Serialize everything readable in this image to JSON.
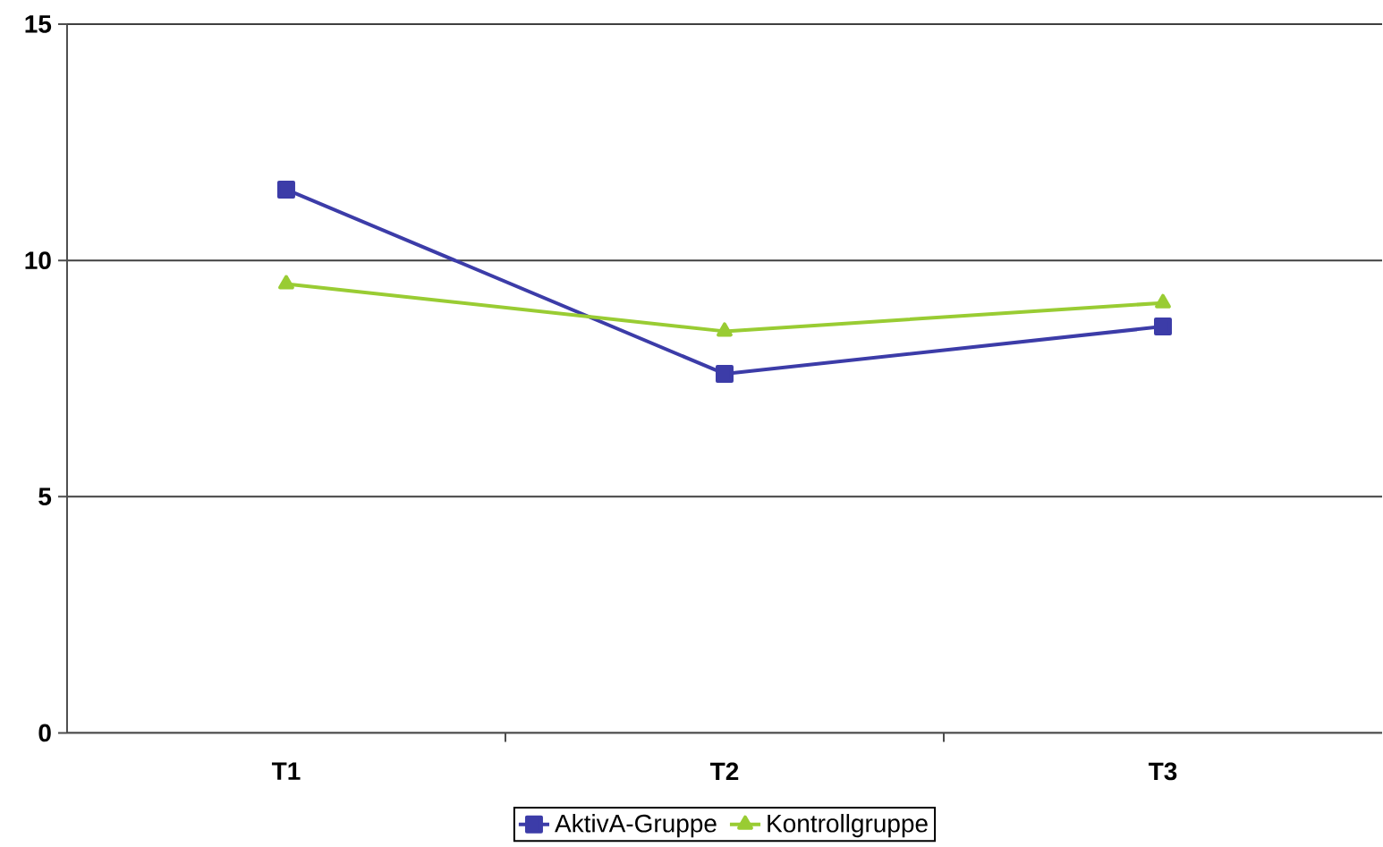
{
  "chart_data": {
    "type": "line",
    "categories": [
      "T1",
      "T2",
      "T3"
    ],
    "series": [
      {
        "name": "AktivA-Gruppe",
        "color": "#3c3ca8",
        "values": [
          11.5,
          7.6,
          8.6
        ],
        "marker": "square"
      },
      {
        "name": "Kontrollgruppe",
        "color": "#99cc33",
        "values": [
          9.5,
          8.5,
          9.1
        ],
        "marker": "triangle"
      }
    ],
    "ylim": [
      0,
      15
    ],
    "yticks": [
      0,
      5,
      10,
      15
    ],
    "grid": "y",
    "legend": "bottom",
    "line_style": "solid"
  }
}
